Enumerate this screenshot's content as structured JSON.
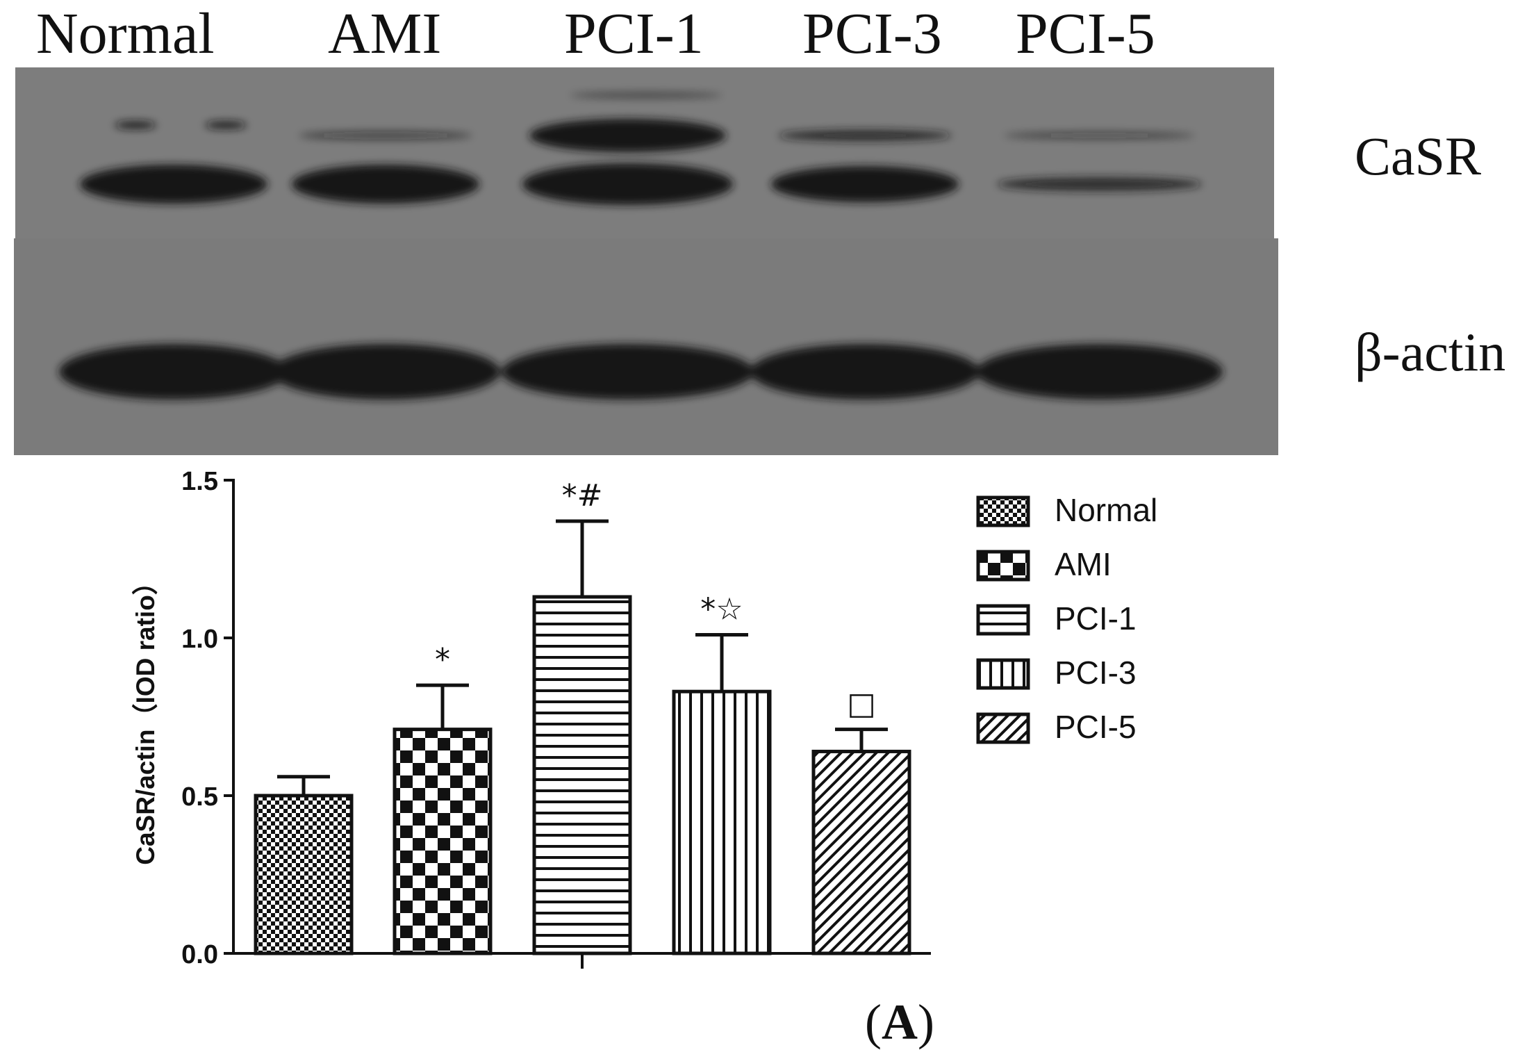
{
  "blot": {
    "lanes": [
      "Normal",
      "AMI",
      "PCI-1",
      "PCI-3",
      "PCI-5"
    ],
    "rows": [
      "CaSR",
      "β-actin"
    ]
  },
  "panel_label": {
    "open": "(",
    "letter": "A",
    "close": ")"
  },
  "chart_data": {
    "type": "bar",
    "title": "",
    "xlabel": "",
    "ylabel": "CaSR/actin（IOD ratio）",
    "ylim": [
      0,
      1.5
    ],
    "yticks": [
      "0.0",
      "0.5",
      "1.0",
      "1.5"
    ],
    "categories": [
      "Normal",
      "AMI",
      "PCI-1",
      "PCI-3",
      "PCI-5"
    ],
    "values": [
      0.5,
      0.71,
      1.13,
      0.83,
      0.64
    ],
    "errors": [
      0.06,
      0.14,
      0.24,
      0.18,
      0.07
    ],
    "annotations": [
      "",
      "*",
      "*#",
      "*☆",
      "□"
    ],
    "patterns": [
      "fine-checker",
      "checker",
      "horizontal-lines",
      "vertical-lines",
      "diagonal-lines"
    ],
    "legend": [
      "Normal",
      "AMI",
      "PCI-1",
      "PCI-3",
      "PCI-5"
    ],
    "legend_position": "right",
    "grid": false
  }
}
